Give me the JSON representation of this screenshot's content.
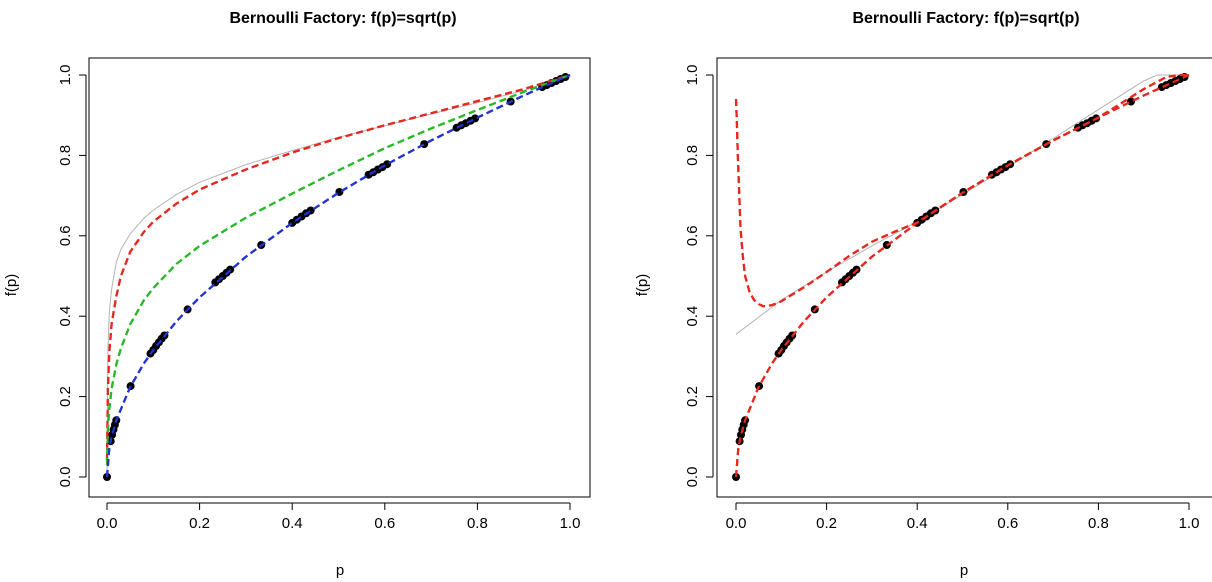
{
  "chart_data": [
    {
      "type": "line",
      "title": "Bernoulli Factory: f(p)=sqrt(p)",
      "xlabel": "p",
      "ylabel": "f(p)",
      "xlim": [
        0,
        1
      ],
      "ylim": [
        0,
        1
      ],
      "xticks": [
        "0.0",
        "0.2",
        "0.4",
        "0.6",
        "0.8",
        "1.0"
      ],
      "yticks": [
        "0.0",
        "0.2",
        "0.4",
        "0.6",
        "0.8",
        "1.0"
      ],
      "grid": false,
      "legend": "none",
      "colors": {
        "reference": "#b3b3b3",
        "red": "#e8271f",
        "green": "#28b828",
        "blue": "#2233d6",
        "points": "#000000"
      },
      "series": [
        {
          "kind": "reference",
          "color": "#b3b3b3",
          "style": "solid",
          "x": [
            0,
            0.002,
            0.005,
            0.01,
            0.02,
            0.03,
            0.05,
            0.08,
            0.1,
            0.15,
            0.2,
            0.3,
            0.4,
            0.5,
            0.6,
            0.7,
            0.8,
            0.9,
            1.0
          ],
          "y": [
            0,
            0.316,
            0.409,
            0.467,
            0.534,
            0.566,
            0.605,
            0.644,
            0.664,
            0.703,
            0.733,
            0.777,
            0.812,
            0.845,
            0.874,
            0.903,
            0.931,
            0.962,
            1.0
          ]
        },
        {
          "kind": "dashed",
          "color": "#e8271f",
          "style": "dashed",
          "x": [
            0,
            0.002,
            0.005,
            0.01,
            0.02,
            0.03,
            0.05,
            0.08,
            0.1,
            0.15,
            0.2,
            0.3,
            0.4,
            0.5,
            0.6,
            0.7,
            0.8,
            0.9,
            1.0
          ],
          "y": [
            0.04,
            0.22,
            0.31,
            0.38,
            0.45,
            0.5,
            0.56,
            0.61,
            0.635,
            0.68,
            0.715,
            0.765,
            0.807,
            0.843,
            0.875,
            0.905,
            0.935,
            0.965,
            1.0
          ]
        },
        {
          "kind": "dashed",
          "color": "#28b828",
          "style": "dashed",
          "x": [
            0,
            0.002,
            0.005,
            0.01,
            0.02,
            0.03,
            0.05,
            0.08,
            0.1,
            0.15,
            0.2,
            0.3,
            0.4,
            0.5,
            0.6,
            0.7,
            0.8,
            0.9,
            1.0
          ],
          "y": [
            0.03,
            0.12,
            0.17,
            0.22,
            0.28,
            0.32,
            0.38,
            0.44,
            0.47,
            0.53,
            0.575,
            0.645,
            0.705,
            0.763,
            0.818,
            0.867,
            0.913,
            0.958,
            1.0
          ]
        },
        {
          "kind": "dashed",
          "color": "#2233d6",
          "style": "dashed",
          "x": [
            0,
            0.005,
            0.01,
            0.02,
            0.05,
            0.08,
            0.1,
            0.15,
            0.2,
            0.3,
            0.4,
            0.5,
            0.6,
            0.7,
            0.8,
            0.9,
            1.0
          ],
          "y": [
            0,
            0.071,
            0.1,
            0.141,
            0.224,
            0.283,
            0.316,
            0.387,
            0.447,
            0.548,
            0.632,
            0.707,
            0.775,
            0.837,
            0.894,
            0.949,
            1.0
          ]
        }
      ],
      "points": {
        "x": [
          0,
          0.008,
          0.011,
          0.014,
          0.017,
          0.02,
          0.051,
          0.094,
          0.1,
          0.106,
          0.112,
          0.118,
          0.124,
          0.174,
          0.234,
          0.242,
          0.25,
          0.258,
          0.266,
          0.333,
          0.4,
          0.41,
          0.42,
          0.43,
          0.44,
          0.502,
          0.565,
          0.575,
          0.585,
          0.595,
          0.605,
          0.685,
          0.755,
          0.765,
          0.775,
          0.785,
          0.795,
          0.872,
          0.94,
          0.95,
          0.96,
          0.97,
          0.98,
          0.99
        ],
        "y": [
          0,
          0.089,
          0.105,
          0.118,
          0.13,
          0.141,
          0.226,
          0.307,
          0.316,
          0.326,
          0.335,
          0.344,
          0.352,
          0.417,
          0.484,
          0.492,
          0.5,
          0.508,
          0.516,
          0.577,
          0.632,
          0.64,
          0.648,
          0.656,
          0.663,
          0.709,
          0.752,
          0.758,
          0.765,
          0.771,
          0.778,
          0.828,
          0.869,
          0.875,
          0.88,
          0.886,
          0.892,
          0.934,
          0.97,
          0.975,
          0.98,
          0.985,
          0.99,
          0.995
        ]
      }
    },
    {
      "type": "line",
      "title": "Bernoulli Factory: f(p)=sqrt(p)",
      "xlabel": "p",
      "ylabel": "f(p)",
      "xlim": [
        0,
        1
      ],
      "ylim": [
        0,
        1
      ],
      "xticks": [
        "0.0",
        "0.2",
        "0.4",
        "0.6",
        "0.8",
        "1.0"
      ],
      "yticks": [
        "0.0",
        "0.2",
        "0.4",
        "0.6",
        "0.8",
        "1.0"
      ],
      "grid": false,
      "legend": "none",
      "colors": {
        "reference": "#b3b3b3",
        "red": "#e8271f",
        "points": "#000000"
      },
      "series": [
        {
          "kind": "reference",
          "color": "#b3b3b3",
          "style": "solid",
          "x": [
            0,
            0.1,
            0.2,
            0.3,
            0.4,
            0.5,
            0.6,
            0.7,
            0.8,
            0.9,
            0.93,
            1.0
          ],
          "y": [
            0.355,
            0.44,
            0.51,
            0.575,
            0.635,
            0.703,
            0.771,
            0.842,
            0.914,
            0.985,
            1.0,
            1.0
          ]
        },
        {
          "kind": "dashed",
          "color": "#e8271f",
          "style": "dashed",
          "x": [
            0,
            0.002,
            0.004,
            0.006,
            0.008,
            0.01,
            0.015,
            0.02,
            0.03,
            0.04,
            0.05,
            0.06,
            0.07,
            0.08,
            0.09,
            0.1,
            0.15,
            0.2,
            0.25,
            0.3,
            0.35,
            0.4,
            0.5,
            0.6,
            0.7,
            0.8,
            0.9,
            0.95,
            0.98,
            1.0
          ],
          "y": [
            0.94,
            0.88,
            0.8,
            0.74,
            0.68,
            0.62,
            0.55,
            0.5,
            0.46,
            0.44,
            0.43,
            0.425,
            0.425,
            0.428,
            0.432,
            0.437,
            0.472,
            0.51,
            0.55,
            0.585,
            0.61,
            0.633,
            0.707,
            0.775,
            0.837,
            0.894,
            0.965,
            0.995,
            1.0,
            1.0
          ]
        },
        {
          "kind": "dashed",
          "color": "#e8271f",
          "style": "dashed",
          "x": [
            0,
            0.005,
            0.01,
            0.02,
            0.05,
            0.08,
            0.1,
            0.15,
            0.2,
            0.3,
            0.4,
            0.5,
            0.6,
            0.7,
            0.8,
            0.9,
            1.0
          ],
          "y": [
            0,
            0.071,
            0.1,
            0.141,
            0.224,
            0.283,
            0.316,
            0.387,
            0.447,
            0.548,
            0.632,
            0.707,
            0.775,
            0.837,
            0.894,
            0.949,
            1.0
          ]
        }
      ],
      "points": {
        "x": [
          0,
          0.008,
          0.011,
          0.014,
          0.017,
          0.02,
          0.051,
          0.094,
          0.1,
          0.106,
          0.112,
          0.118,
          0.124,
          0.174,
          0.234,
          0.242,
          0.25,
          0.258,
          0.266,
          0.333,
          0.4,
          0.41,
          0.42,
          0.43,
          0.44,
          0.502,
          0.565,
          0.575,
          0.585,
          0.595,
          0.605,
          0.685,
          0.755,
          0.765,
          0.775,
          0.785,
          0.795,
          0.872,
          0.94,
          0.95,
          0.96,
          0.97,
          0.98,
          0.99
        ],
        "y": [
          0,
          0.089,
          0.105,
          0.118,
          0.13,
          0.141,
          0.226,
          0.307,
          0.316,
          0.326,
          0.335,
          0.344,
          0.352,
          0.417,
          0.484,
          0.492,
          0.5,
          0.508,
          0.516,
          0.577,
          0.632,
          0.64,
          0.648,
          0.656,
          0.663,
          0.709,
          0.752,
          0.758,
          0.765,
          0.771,
          0.778,
          0.828,
          0.869,
          0.875,
          0.88,
          0.886,
          0.892,
          0.934,
          0.97,
          0.975,
          0.98,
          0.985,
          0.99,
          0.995
        ]
      }
    }
  ]
}
